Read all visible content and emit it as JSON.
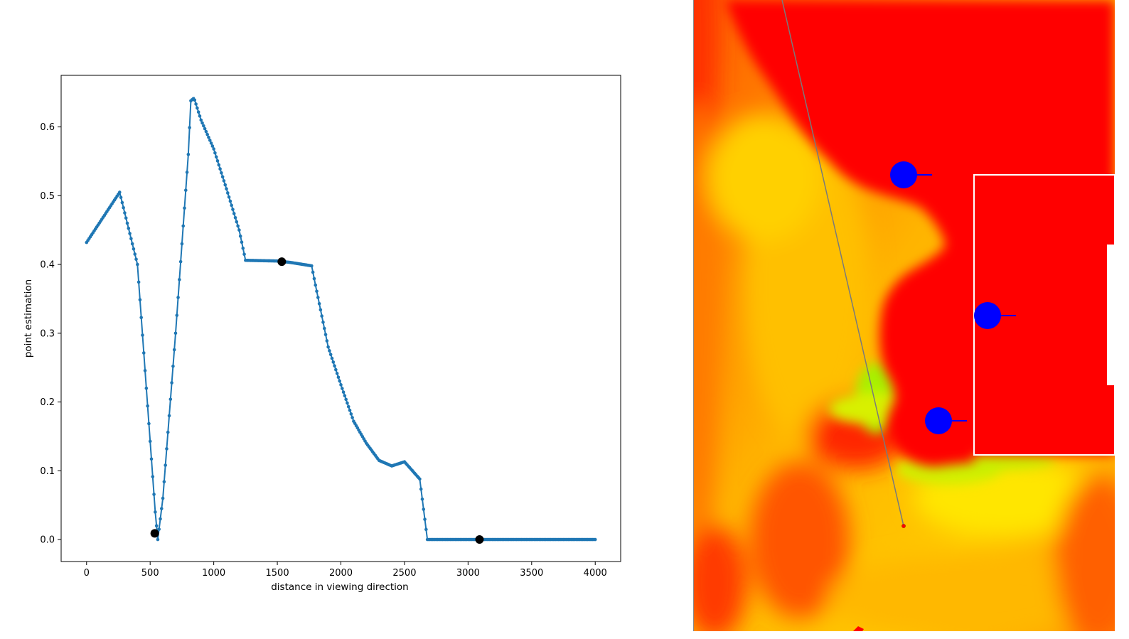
{
  "chart_data": [
    {
      "type": "line",
      "title": "",
      "xlabel": "distance in viewing direction",
      "ylabel": "point estimation",
      "xlim": [
        -200,
        4200
      ],
      "ylim": [
        -0.032,
        0.675
      ],
      "xticks": [
        "0",
        "500",
        "1000",
        "1500",
        "2000",
        "2500",
        "3000",
        "3500",
        "4000"
      ],
      "yticks": [
        "0.0",
        "0.1",
        "0.2",
        "0.3",
        "0.4",
        "0.5",
        "0.6"
      ],
      "grid": false,
      "legend": "none",
      "colors": {
        "line": "#1f77b4",
        "highlight": "#000000"
      },
      "series": [
        {
          "marker": "dot",
          "points": [
            [
              0,
              0.432
            ],
            [
              260,
              0.505
            ],
            [
              400,
              0.4
            ],
            [
              540,
              0.04
            ],
            [
              560,
              0.0
            ],
            [
              600,
              0.06
            ],
            [
              700,
              0.3
            ],
            [
              800,
              0.56
            ],
            [
              820,
              0.638
            ],
            [
              845,
              0.642
            ],
            [
              900,
              0.61
            ],
            [
              1000,
              0.568
            ],
            [
              1100,
              0.51
            ],
            [
              1200,
              0.45
            ],
            [
              1250,
              0.406
            ],
            [
              1500,
              0.405
            ],
            [
              1600,
              0.403
            ],
            [
              1770,
              0.398
            ],
            [
              1800,
              0.37
            ],
            [
              1900,
              0.28
            ],
            [
              2000,
              0.225
            ],
            [
              2100,
              0.172
            ],
            [
              2200,
              0.14
            ],
            [
              2300,
              0.115
            ],
            [
              2400,
              0.107
            ],
            [
              2500,
              0.113
            ],
            [
              2620,
              0.088
            ],
            [
              2680,
              0.0
            ],
            [
              4000,
              0.0
            ]
          ]
        }
      ],
      "highlighted_points": [
        [
          536,
          0.009
        ],
        [
          1535,
          0.404
        ],
        [
          3090,
          0.0
        ]
      ]
    },
    {
      "type": "heatmap",
      "colormap": [
        "#ff0000",
        "#ff8c00",
        "#ffdc00",
        "#a8f000"
      ],
      "circle_color": "#0000ff",
      "wall_color": "#ffffff"
    }
  ]
}
